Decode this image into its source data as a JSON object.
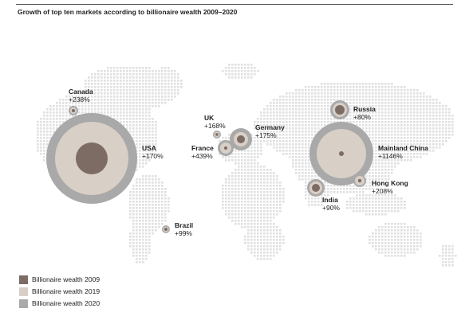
{
  "title": "Growth of top ten markets according to billionaire wealth 2009–2020",
  "colors": {
    "wealth_2009": "#7d6c63",
    "wealth_2019": "#d8cfc6",
    "wealth_2020": "#a9a9a9",
    "dots": "#e0e0e0"
  },
  "markets": [
    {
      "name": "Canada",
      "change": "+238%"
    },
    {
      "name": "USA",
      "change": "+170%"
    },
    {
      "name": "UK",
      "change": "+168%"
    },
    {
      "name": "France",
      "change": "+439%"
    },
    {
      "name": "Germany",
      "change": "+175%"
    },
    {
      "name": "Brazil",
      "change": "+99%"
    },
    {
      "name": "Russia",
      "change": "+80%"
    },
    {
      "name": "Mainland China",
      "change": "+1146%"
    },
    {
      "name": "India",
      "change": "+90%"
    },
    {
      "name": "Hong Kong",
      "change": "+208%"
    }
  ],
  "legend": [
    {
      "label": "Billionaire wealth 2009",
      "color_key": "wealth_2009"
    },
    {
      "label": "Billionaire wealth 2019",
      "color_key": "wealth_2019"
    },
    {
      "label": "Billionaire wealth 2020",
      "color_key": "wealth_2020"
    }
  ]
}
